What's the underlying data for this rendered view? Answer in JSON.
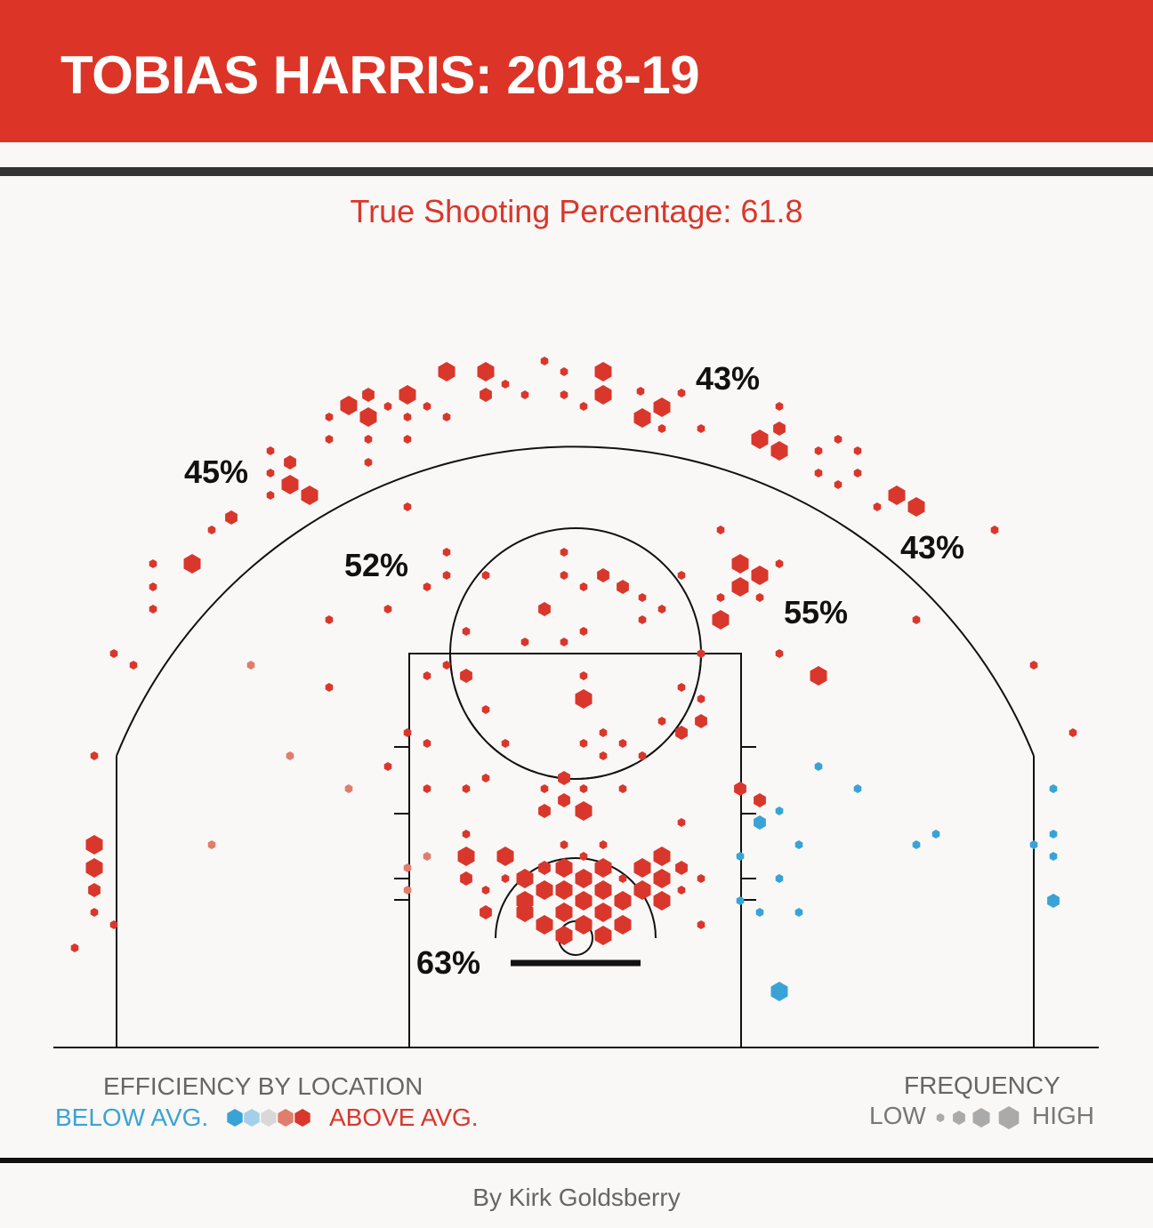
{
  "header": {
    "title": "TOBIAS HARRIS: 2018-19"
  },
  "colors": {
    "header_bg": "#dc3427",
    "above_avg": "#d9372c",
    "slightly_above": "#e07d6c",
    "average": "#d8d8d8",
    "slightly_below": "#a3cfe9",
    "below_avg": "#3aa3d6",
    "frequency_legend": "#aaaaaa"
  },
  "chart_data": {
    "type": "hexbin shot chart",
    "title": "True Shooting Percentage: 61.8",
    "zone_labels": [
      "43%",
      "45%",
      "43%",
      "52%",
      "55%",
      "63%"
    ],
    "legend": {
      "efficiency_title": "EFFICIENCY BY LOCATION",
      "below_label": "BELOW AVG.",
      "above_label": "ABOVE AVG.",
      "efficiency_levels": [
        "below_avg",
        "slightly_below",
        "average",
        "slightly_above",
        "above_avg"
      ],
      "frequency_title": "FREQUENCY",
      "low_label": "LOW",
      "high_label": "HIGH",
      "frequency_levels": [
        1,
        2,
        3,
        4
      ]
    }
  },
  "byline": "By Kirk Goldsberry"
}
